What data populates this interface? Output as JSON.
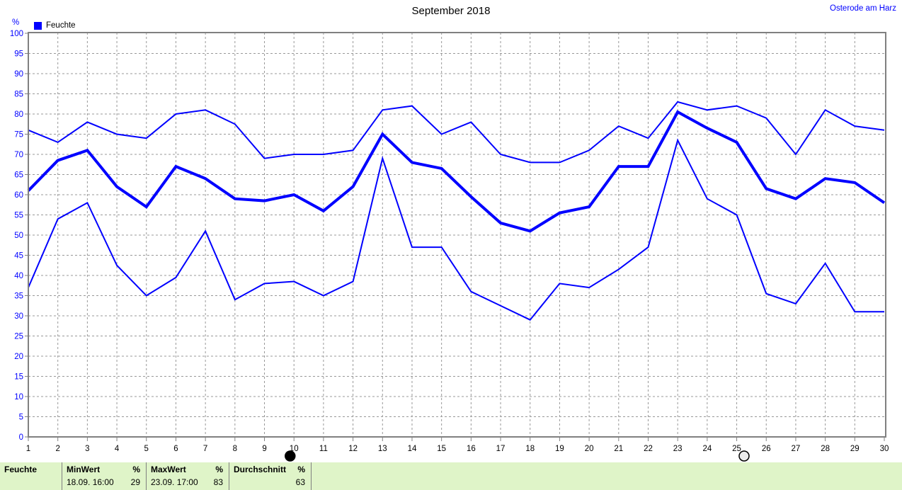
{
  "header": {
    "title": "September 2018",
    "station": "Osterode am Harz"
  },
  "legend": {
    "label": "Feuchte",
    "color": "#0000ff"
  },
  "chart_data": {
    "type": "line",
    "title": "September 2018",
    "ylabel": "%",
    "xlabel": "",
    "grid": true,
    "legend_position": "top-left",
    "line_color": "#0000ff",
    "x": [
      1,
      2,
      3,
      4,
      5,
      6,
      7,
      8,
      9,
      10,
      11,
      12,
      13,
      14,
      15,
      16,
      17,
      18,
      19,
      20,
      21,
      22,
      23,
      24,
      25,
      26,
      27,
      28,
      29,
      30
    ],
    "ylim": [
      0,
      100
    ],
    "ytick_step": 5,
    "series": [
      {
        "name": "max",
        "thick": false,
        "values": [
          76,
          73,
          78,
          75,
          74,
          80,
          81,
          77.5,
          69,
          70,
          70,
          71,
          81,
          82,
          75,
          78,
          70,
          68,
          68,
          71,
          77,
          74,
          83,
          81,
          82,
          79,
          70,
          81,
          77,
          76
        ]
      },
      {
        "name": "avg",
        "thick": true,
        "values": [
          61,
          68.5,
          71,
          62,
          57,
          67,
          64,
          59,
          58.5,
          60,
          56,
          62,
          75,
          68,
          66.5,
          59.5,
          53,
          51,
          55.5,
          57,
          67,
          67,
          80.5,
          76.5,
          73,
          61.5,
          59,
          64,
          63,
          58
        ]
      },
      {
        "name": "min",
        "thick": false,
        "values": [
          37,
          54,
          58,
          42.5,
          35,
          39.5,
          51,
          34,
          38,
          38.5,
          35,
          38.5,
          69,
          47,
          47,
          36,
          32.5,
          29,
          38,
          37,
          41.5,
          47,
          73.5,
          59,
          55,
          35.5,
          33,
          43,
          31,
          31
        ]
      }
    ],
    "moon_markers": [
      {
        "phase": "new",
        "x_day": 9.87
      },
      {
        "phase": "full",
        "x_day": 25.25
      }
    ]
  },
  "summary_table": {
    "row_label": "Feuchte",
    "columns": [
      {
        "header": "MinWert",
        "unit": "%",
        "time": "18.09. 16:00",
        "value": "29"
      },
      {
        "header": "MaxWert",
        "unit": "%",
        "time": "23.09. 17:00",
        "value": "83"
      },
      {
        "header": "Durchschnitt",
        "unit": "%",
        "time": "",
        "value": "63"
      }
    ]
  }
}
